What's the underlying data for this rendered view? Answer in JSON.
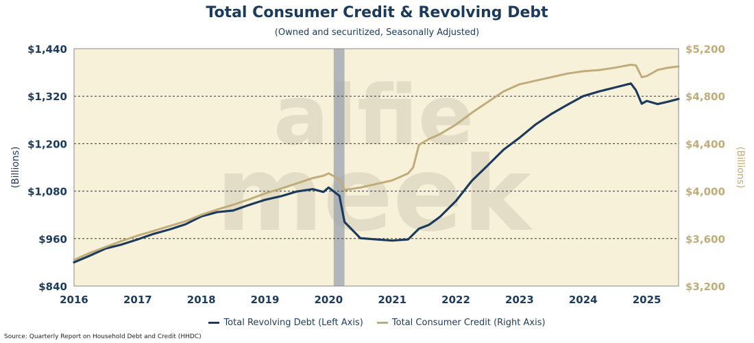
{
  "chart_data": {
    "type": "line",
    "title": "Total Consumer Credit & Revolving Debt",
    "subtitle": "(Owned and securitized, Seasonally Adjusted)",
    "ylabel_left": "(Billions)",
    "ylabel_right": "(Billions)",
    "xlim": [
      2016.0,
      2025.5
    ],
    "ylim_left": [
      840,
      1440
    ],
    "ylim_right": [
      3200,
      5200
    ],
    "x_ticks": [
      2016,
      2017,
      2018,
      2019,
      2020,
      2021,
      2022,
      2023,
      2024,
      2025
    ],
    "y_ticks_left": [
      "$840",
      "$960",
      "$1,080",
      "$1,200",
      "$1,320",
      "$1,440"
    ],
    "y_ticks_right": [
      "$3,200",
      "$3,600",
      "$4,000",
      "$4,400",
      "$4,800",
      "$5,200"
    ],
    "y_tick_values_left": [
      840,
      960,
      1080,
      1200,
      1320,
      1440
    ],
    "y_tick_values_right": [
      3200,
      3600,
      4000,
      4400,
      4800,
      5200
    ],
    "grid": "horizontal dashed",
    "recession_shading": {
      "start": 2020.08,
      "end": 2020.25
    },
    "background_color": "#f7f1d9",
    "watermark": "alfie meek",
    "series": [
      {
        "name": "Total Revolving Debt (Left Axis)",
        "axis": "left",
        "color": "#1b3a5c",
        "x": [
          2016.0,
          2016.25,
          2016.5,
          2016.75,
          2017.0,
          2017.25,
          2017.5,
          2017.75,
          2018.0,
          2018.25,
          2018.5,
          2018.75,
          2019.0,
          2019.25,
          2019.5,
          2019.75,
          2019.92,
          2020.0,
          2020.17,
          2020.25,
          2020.5,
          2020.75,
          2021.0,
          2021.25,
          2021.42,
          2021.58,
          2021.75,
          2022.0,
          2022.25,
          2022.5,
          2022.75,
          2023.0,
          2023.25,
          2023.5,
          2023.75,
          2024.0,
          2024.25,
          2024.5,
          2024.75,
          2024.83,
          2024.92,
          2025.0,
          2025.17,
          2025.33,
          2025.5
        ],
        "values": [
          900,
          917,
          935,
          945,
          958,
          972,
          983,
          996,
          1016,
          1027,
          1031,
          1045,
          1058,
          1067,
          1079,
          1085,
          1078,
          1089,
          1068,
          1002,
          961,
          958,
          955,
          958,
          985,
          995,
          1015,
          1055,
          1106,
          1145,
          1185,
          1215,
          1248,
          1275,
          1298,
          1320,
          1332,
          1342,
          1352,
          1335,
          1301,
          1308,
          1300,
          1306,
          1313
        ]
      },
      {
        "name": "Total Consumer Credit (Right Axis)",
        "axis": "right",
        "color": "#bfac7a",
        "x": [
          2016.0,
          2016.25,
          2016.5,
          2016.75,
          2017.0,
          2017.25,
          2017.5,
          2017.75,
          2018.0,
          2018.25,
          2018.5,
          2018.75,
          2019.0,
          2019.25,
          2019.5,
          2019.75,
          2019.92,
          2020.0,
          2020.17,
          2020.25,
          2020.5,
          2020.75,
          2021.0,
          2021.25,
          2021.33,
          2021.42,
          2021.58,
          2021.75,
          2022.0,
          2022.25,
          2022.5,
          2022.75,
          2023.0,
          2023.25,
          2023.5,
          2023.75,
          2024.0,
          2024.25,
          2024.5,
          2024.75,
          2024.83,
          2024.92,
          2025.0,
          2025.17,
          2025.33,
          2025.5
        ],
        "values": [
          3420,
          3480,
          3530,
          3580,
          3625,
          3665,
          3705,
          3745,
          3800,
          3845,
          3885,
          3930,
          3980,
          4020,
          4065,
          4110,
          4130,
          4150,
          4100,
          4010,
          4030,
          4060,
          4090,
          4150,
          4200,
          4390,
          4440,
          4480,
          4560,
          4660,
          4750,
          4840,
          4900,
          4930,
          4960,
          4990,
          5010,
          5020,
          5040,
          5065,
          5060,
          4960,
          4970,
          5020,
          5040,
          5050
        ]
      }
    ]
  },
  "legend": {
    "revolving_label": "Total Revolving Debt (Left Axis)",
    "consumer_label": "Total Consumer Credit (Right Axis)"
  },
  "source": "Source: Quarterly Report on Household Debt and Credit (HHDC)"
}
